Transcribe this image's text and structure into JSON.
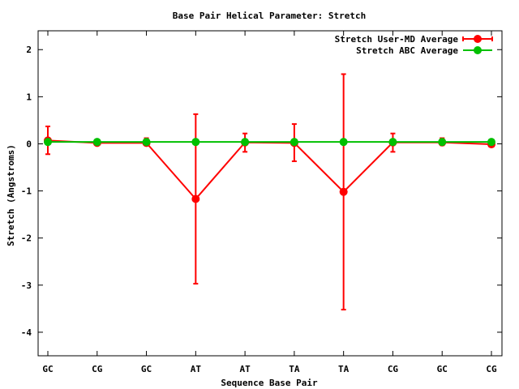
{
  "chart_data": {
    "type": "line",
    "title": "Base Pair Helical Parameter: Stretch",
    "xlabel": "Sequence Base Pair",
    "ylabel": "Stretch (Angstroms)",
    "categories": [
      "GC",
      "CG",
      "GC",
      "AT",
      "AT",
      "TA",
      "TA",
      "CG",
      "GC",
      "CG"
    ],
    "ylim": [
      -4.5,
      2.4
    ],
    "yticks": [
      -4,
      -3,
      -2,
      -1,
      0,
      1,
      2
    ],
    "grid": false,
    "legend": "top-right",
    "series": [
      {
        "name": "Stretch User-MD Average",
        "color": "#ff0000",
        "values": [
          0.07,
          0.02,
          0.02,
          -1.17,
          0.03,
          0.02,
          -1.02,
          0.03,
          0.03,
          -0.01
        ],
        "err_low": [
          -0.22,
          -0.02,
          -0.03,
          -2.97,
          -0.17,
          -0.37,
          -3.52,
          -0.17,
          -0.03,
          -0.06
        ],
        "err_high": [
          0.37,
          0.06,
          0.12,
          0.63,
          0.22,
          0.42,
          1.48,
          0.22,
          0.12,
          0.04
        ]
      },
      {
        "name": "Stretch ABC Average",
        "color": "#00c000",
        "values": [
          0.04,
          0.04,
          0.04,
          0.04,
          0.04,
          0.04,
          0.04,
          0.04,
          0.04,
          0.04
        ]
      }
    ]
  }
}
